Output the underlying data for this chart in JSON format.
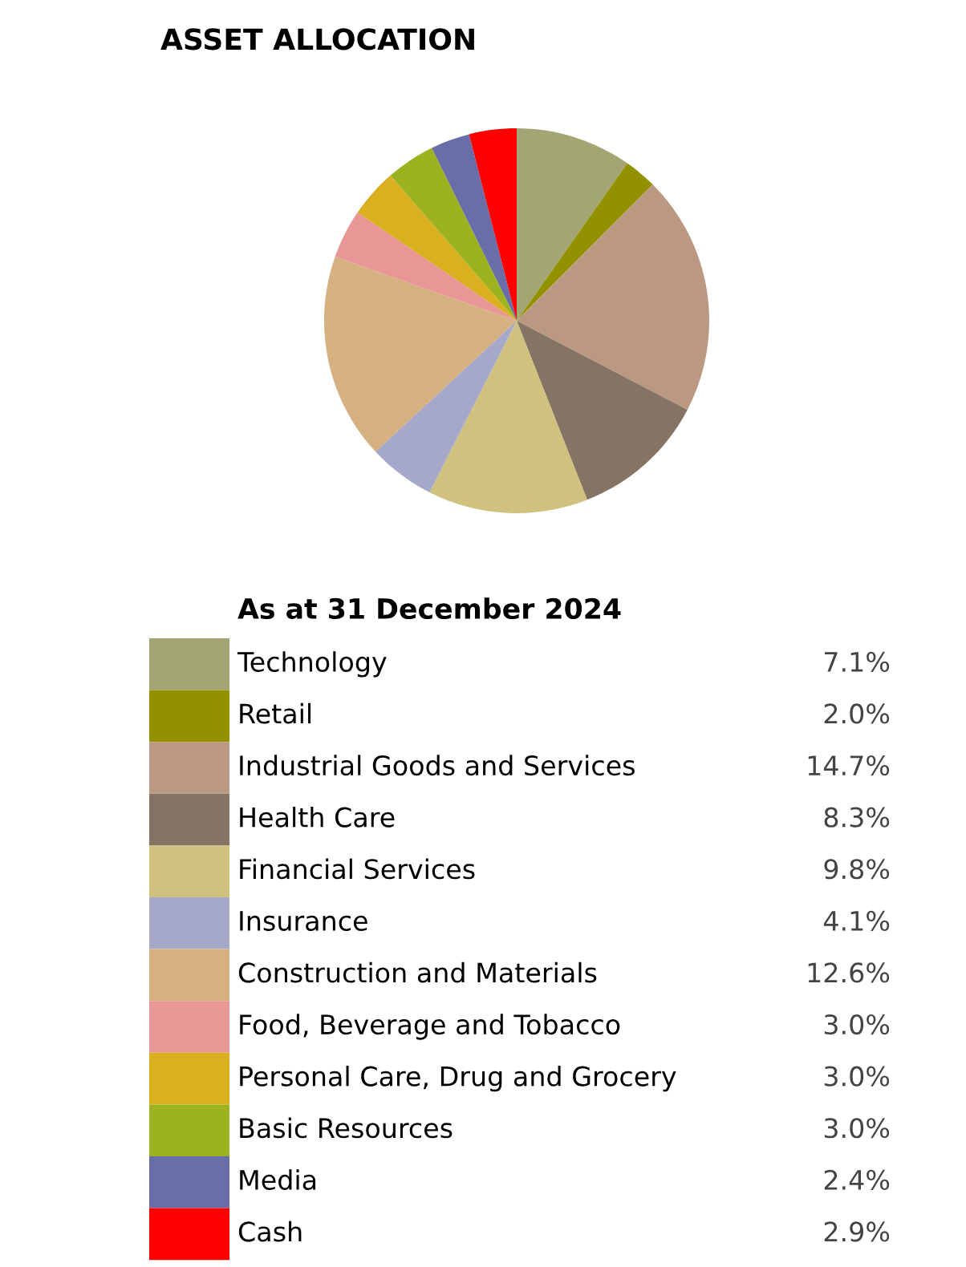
{
  "chart_data": {
    "type": "pie",
    "title": "ASSET ALLOCATION",
    "subtitle": "As at 31 December 2024",
    "categories": [
      "Technology",
      "Retail",
      "Industrial Goods and Services",
      "Health Care",
      "Financial Services",
      "Insurance",
      "Construction and Materials",
      "Food, Beverage and Tobacco",
      "Personal Care, Drug and Grocery",
      "Basic Resources",
      "Media",
      "Cash"
    ],
    "values": [
      7.1,
      2.0,
      14.7,
      8.3,
      9.8,
      4.1,
      12.6,
      3.0,
      3.0,
      3.0,
      2.4,
      2.9
    ],
    "value_labels": [
      "7.1%",
      "2.0%",
      "14.7%",
      "8.3%",
      "9.8%",
      "4.1%",
      "12.6%",
      "3.0%",
      "3.0%",
      "3.0%",
      "2.4%",
      "2.9%"
    ],
    "colors": [
      "#a4a574",
      "#929200",
      "#bb9882",
      "#857463",
      "#d0c17e",
      "#a5a8c9",
      "#d5b080",
      "#e89696",
      "#d8b020",
      "#9cb31f",
      "#6a6ea8",
      "#ff0000"
    ],
    "legend": "bottom"
  }
}
